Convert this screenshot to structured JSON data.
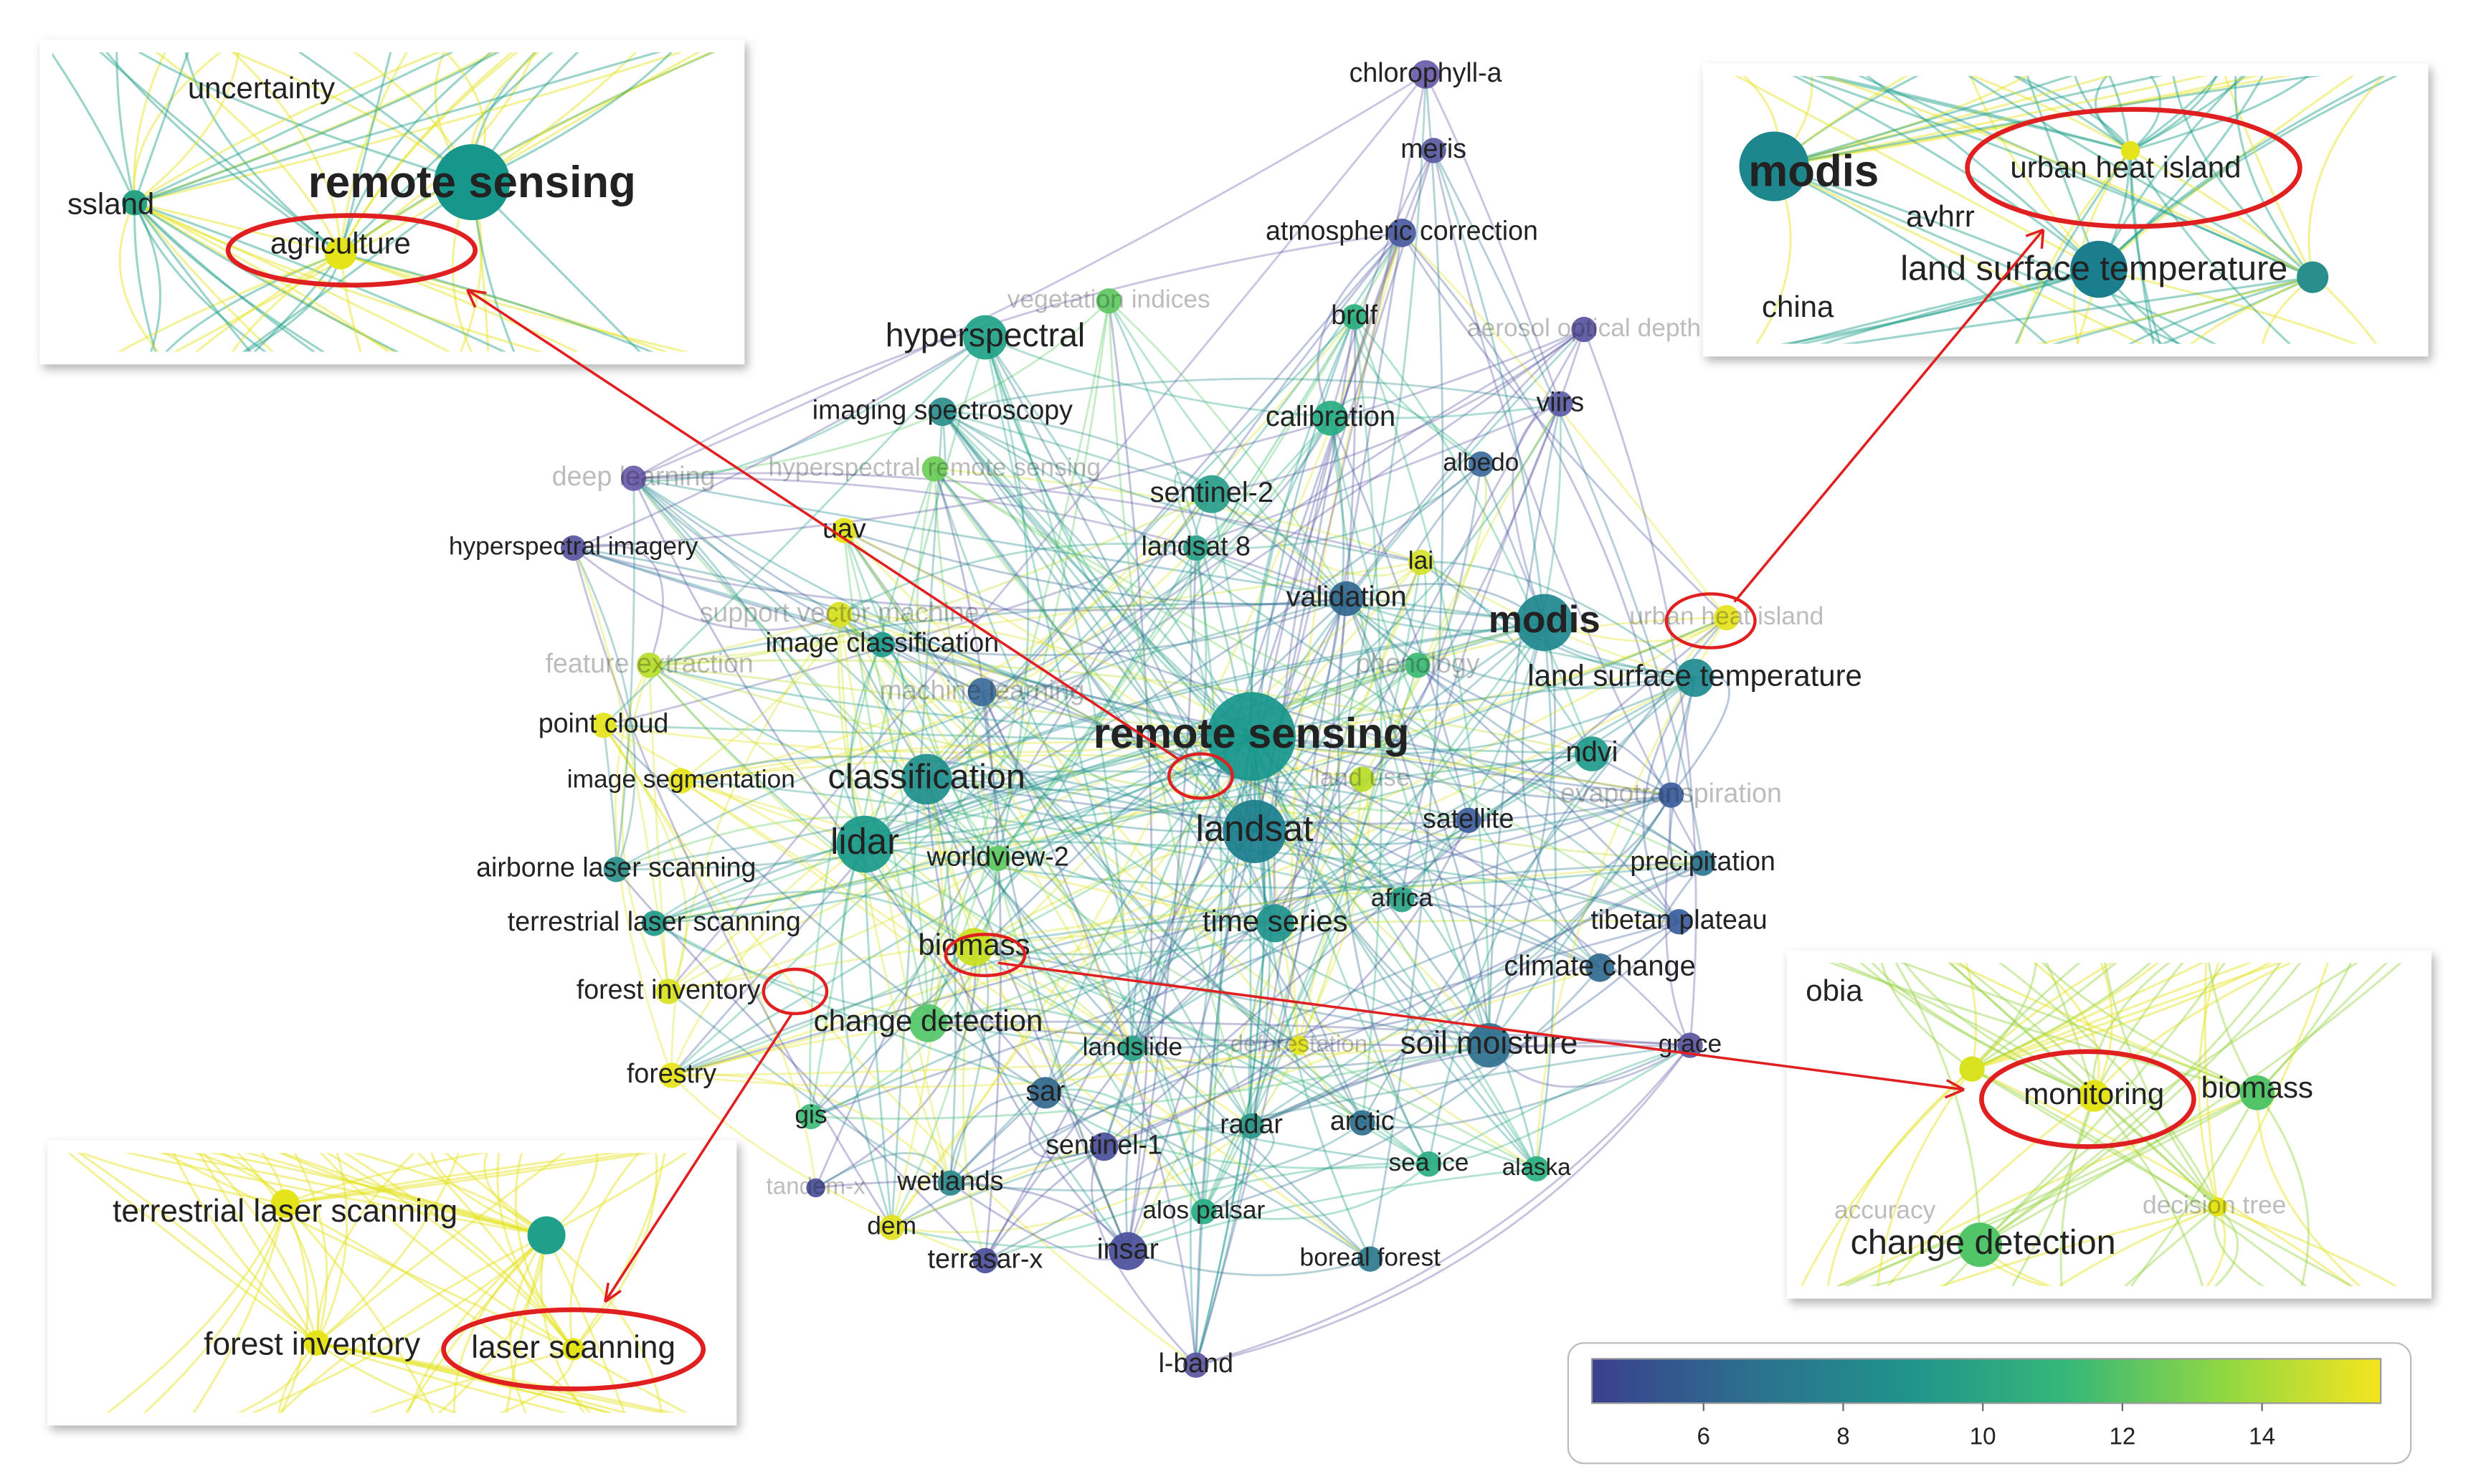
{
  "network": {
    "nodes": [
      {
        "label": "remote sensing",
        "color": "#17968b"
      },
      {
        "label": "modis",
        "color": "#1e878e"
      },
      {
        "label": "landsat",
        "color": "#1a7e8c"
      },
      {
        "label": "lidar",
        "color": "#18998a"
      },
      {
        "label": "classification",
        "color": "#218f8c"
      },
      {
        "label": "hyperspectral",
        "color": "#1fa187"
      },
      {
        "label": "land surface temperature",
        "color": "#1e8a90"
      },
      {
        "label": "soil moisture",
        "color": "#2d6f8e"
      },
      {
        "label": "biomass",
        "color": "#c8e020"
      },
      {
        "label": "change detection",
        "color": "#52c569"
      },
      {
        "label": "time series",
        "color": "#20938c"
      },
      {
        "label": "sentinel-2",
        "color": "#2a9d8a"
      },
      {
        "label": "ndvi",
        "color": "#1f9a8a"
      },
      {
        "label": "validation",
        "color": "#31688e"
      },
      {
        "label": "calibration",
        "color": "#27ad81"
      },
      {
        "label": "imaging spectroscopy",
        "color": "#2c8f8c"
      },
      {
        "label": "chlorophyll-a",
        "color": "#6a5aaa"
      },
      {
        "label": "meris",
        "color": "#5a5aa0"
      },
      {
        "label": "atmospheric correction",
        "color": "#4a5aa0"
      },
      {
        "label": "brdf",
        "color": "#2bb07f"
      },
      {
        "label": "viirs",
        "color": "#5b5ca6"
      },
      {
        "label": "albedo",
        "color": "#3d6a9a"
      },
      {
        "label": "landsat 8",
        "color": "#29a188"
      },
      {
        "label": "lai",
        "color": "#d6e22b"
      },
      {
        "label": "satellite",
        "color": "#3f5e9e"
      },
      {
        "label": "precipitation",
        "color": "#2d7590"
      },
      {
        "label": "tibetan plateau",
        "color": "#3a5d9c"
      },
      {
        "label": "climate change",
        "color": "#306a8e"
      },
      {
        "label": "africa",
        "color": "#2aa385"
      },
      {
        "label": "grace",
        "color": "#5a55a0"
      },
      {
        "label": "arctic",
        "color": "#2f6f8e"
      },
      {
        "label": "sea ice",
        "color": "#27ad81"
      },
      {
        "label": "alaska",
        "color": "#2ab07f"
      },
      {
        "label": "boreal forest",
        "color": "#2c7a8e"
      },
      {
        "label": "radar",
        "color": "#2a9588"
      },
      {
        "label": "sentinel-1",
        "color": "#4a4e9a"
      },
      {
        "label": "landslide",
        "color": "#29a387"
      },
      {
        "label": "sar",
        "color": "#31688e"
      },
      {
        "label": "insar",
        "color": "#4a4e9a"
      },
      {
        "label": "alos palsar",
        "color": "#27ad81"
      },
      {
        "label": "terrasar-x",
        "color": "#4a4e9a"
      },
      {
        "label": "l-band",
        "color": "#5a55a0"
      },
      {
        "label": "wetlands",
        "color": "#2a8a8c"
      },
      {
        "label": "dem",
        "color": "#e0e21f"
      },
      {
        "label": "gis",
        "color": "#3cbb75"
      },
      {
        "label": "forestry",
        "color": "#e5e31a"
      },
      {
        "label": "forest inventory",
        "color": "#d8e21f"
      },
      {
        "label": "terrestrial laser scanning",
        "color": "#1f9a8a"
      },
      {
        "label": "airborne laser scanning",
        "color": "#2a8f8c"
      },
      {
        "label": "worldview-2",
        "color": "#5ec962"
      },
      {
        "label": "image segmentation",
        "color": "#e5e31a"
      },
      {
        "label": "point cloud",
        "color": "#e5e31a"
      },
      {
        "label": "feature extraction",
        "color": "#b8de29"
      },
      {
        "label": "image classification",
        "color": "#1f9a8a"
      },
      {
        "label": "machine learning",
        "color": "#3a6a9a"
      },
      {
        "label": "support vector machine",
        "color": "#d8e21f"
      },
      {
        "label": "uav",
        "color": "#e5e31a"
      },
      {
        "label": "hyperspectral imagery",
        "color": "#5a55a0"
      },
      {
        "label": "deep learning",
        "color": "#6a5aaa"
      },
      {
        "label": "hyperspectral remote sensing",
        "color": "#6ece58"
      },
      {
        "label": "vegetation indices",
        "color": "#5ec962"
      },
      {
        "label": "aerosol optical depth",
        "color": "#5a55a0"
      },
      {
        "label": "urban heat island",
        "color": "#e5e31a"
      },
      {
        "label": "phenology",
        "color": "#3cbb75"
      },
      {
        "label": "land use",
        "color": "#b8de29"
      },
      {
        "label": "evapotranspiration",
        "color": "#3a5d9c"
      },
      {
        "label": "deforestation",
        "color": "#e5e31a"
      },
      {
        "label": "tandem-x",
        "color": "#4a4e9a"
      }
    ]
  },
  "insets": [
    {
      "labels": [
        "uncertainty",
        "remote sensing",
        "ssland",
        "agriculture"
      ]
    },
    {
      "labels": [
        "modis",
        "urban heat island",
        "avhrr",
        "land surface temperature",
        "china"
      ]
    },
    {
      "labels": [
        "obia",
        "monitoring",
        "biomass",
        "accuracy",
        "decision tree",
        "change detection"
      ]
    },
    {
      "labels": [
        "terrestrial laser scanning",
        "forest inventory",
        "laser scanning"
      ]
    }
  ],
  "color_scale": {
    "range": [
      4.4,
      15.7
    ],
    "ticks": [
      6,
      8,
      10,
      12,
      14
    ],
    "colors": [
      "#3b3f8f",
      "#2c6f8e",
      "#20938c",
      "#35b779",
      "#90d743",
      "#f4e51e"
    ]
  }
}
